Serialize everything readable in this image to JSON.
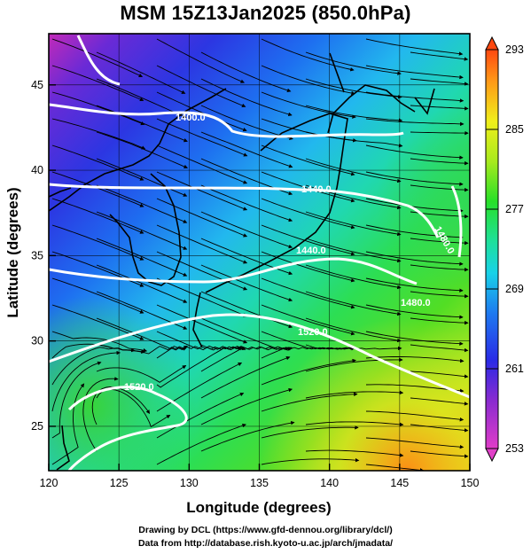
{
  "title": "MSM 15Z13Jan2025 (850.0hPa)",
  "xlabel": "Longitude (degrees)",
  "ylabel": "Latitude  (degrees)",
  "credits": {
    "line1": "Drawing by DCL (https://www.gfd-dennou.org/library/dcl/)",
    "line2": "Data from http://database.rish.kyoto-u.ac.jp/arch/jmadata/"
  },
  "map": {
    "lon_range": [
      120,
      150
    ],
    "lat_range": [
      22.4,
      48
    ],
    "x_ticks": [
      "120",
      "125",
      "130",
      "135",
      "140",
      "145",
      "150"
    ],
    "y_ticks": [
      "25",
      "30",
      "35",
      "40",
      "45"
    ],
    "grid": true,
    "field": "temperature (K), shaded",
    "vectors": "wind streamlines, black",
    "contours": "geopotential height (m), white"
  },
  "colorbar": {
    "min": 253,
    "max": 293,
    "labels": [
      "293",
      "285",
      "277",
      "269",
      "261",
      "253"
    ],
    "colors": [
      "#e03cc8",
      "#8a2bd0",
      "#2a2ae6",
      "#1e7af0",
      "#18d2e8",
      "#1ee09a",
      "#28e028",
      "#a8ea1e",
      "#f0ee1a",
      "#ff9a18",
      "#ff4810"
    ]
  },
  "contour_labels": [
    "1400.0",
    "1440.0",
    "1440.0",
    "1480.0",
    "1480.0",
    "1520.0",
    "1520.0"
  ]
}
